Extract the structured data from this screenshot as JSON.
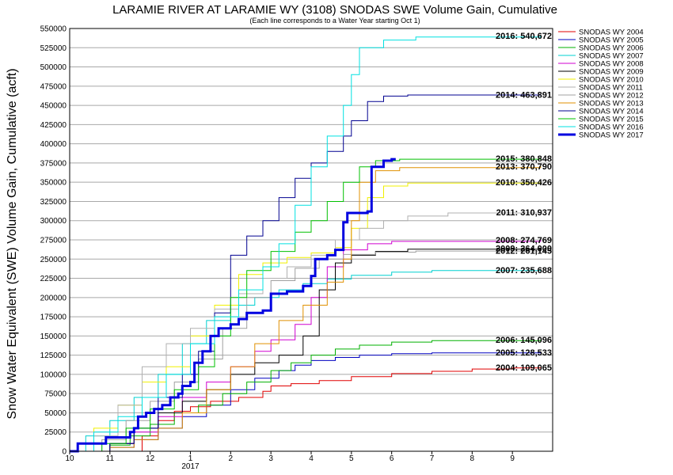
{
  "chart_data": {
    "type": "line",
    "title": "LARAMIE RIVER AT LARAMIE WY (3108) SNODAS SWE Volume Gain, Cumulative",
    "subtitle": "(Each line corresponds to a Water Year starting Oct 1)",
    "ylabel": "Snow Water Equivalent (SWE) Volume Gain, Cumulative (acft)",
    "xlabel": "",
    "ylim": [
      0,
      550000
    ],
    "xlim": [
      10,
      22
    ],
    "x_ticks": [
      {
        "value": 10,
        "label": "10"
      },
      {
        "value": 11,
        "label": "11"
      },
      {
        "value": 12,
        "label": "12"
      },
      {
        "value": 13,
        "label": "1"
      },
      {
        "value": 14,
        "label": "2"
      },
      {
        "value": 15,
        "label": "3"
      },
      {
        "value": 16,
        "label": "4"
      },
      {
        "value": 17,
        "label": "5"
      },
      {
        "value": 18,
        "label": "6"
      },
      {
        "value": 19,
        "label": "7"
      },
      {
        "value": 20,
        "label": "8"
      },
      {
        "value": 21,
        "label": "9"
      }
    ],
    "x_year_label": {
      "value": 13,
      "label": "2017"
    },
    "y_ticks": [
      0,
      25000,
      50000,
      75000,
      100000,
      125000,
      150000,
      175000,
      200000,
      225000,
      250000,
      275000,
      300000,
      325000,
      350000,
      375000,
      400000,
      425000,
      450000,
      475000,
      500000,
      525000,
      550000
    ],
    "grid": "horizontal",
    "legend_position": "right",
    "series": [
      {
        "name": "SNODAS WY 2004",
        "color": "#e00000",
        "width": 1,
        "points": [
          [
            10,
            0
          ],
          [
            11.4,
            0
          ],
          [
            11.8,
            20000
          ],
          [
            12.2,
            40000
          ],
          [
            12.6,
            52000
          ],
          [
            13.0,
            58000
          ],
          [
            13.5,
            65000
          ],
          [
            14.2,
            70000
          ],
          [
            14.8,
            78000
          ],
          [
            15.0,
            85000
          ],
          [
            15.5,
            88000
          ],
          [
            16.2,
            92000
          ],
          [
            17.0,
            97000
          ],
          [
            18.0,
            101000
          ],
          [
            19.0,
            104000
          ],
          [
            20.0,
            107000
          ],
          [
            21.0,
            108500
          ],
          [
            21.7,
            109065
          ]
        ],
        "annotation": "2004: 109,065"
      },
      {
        "name": "SNODAS WY 2005",
        "color": "#0000c0",
        "width": 1,
        "points": [
          [
            10,
            0
          ],
          [
            11.0,
            5000
          ],
          [
            11.6,
            15000
          ],
          [
            12.2,
            30000
          ],
          [
            12.8,
            45000
          ],
          [
            13.4,
            60000
          ],
          [
            14.0,
            80000
          ],
          [
            14.6,
            95000
          ],
          [
            15.2,
            105000
          ],
          [
            15.6,
            112000
          ],
          [
            16.0,
            118000
          ],
          [
            16.6,
            122000
          ],
          [
            17.2,
            125000
          ],
          [
            18.0,
            127000
          ],
          [
            19.0,
            128000
          ],
          [
            21.7,
            128533
          ]
        ],
        "annotation": "2005: 128,533"
      },
      {
        "name": "SNODAS WY 2006",
        "color": "#00b000",
        "width": 1,
        "points": [
          [
            10,
            0
          ],
          [
            11.0,
            8000
          ],
          [
            11.5,
            20000
          ],
          [
            12.0,
            35000
          ],
          [
            12.6,
            50000
          ],
          [
            13.2,
            60000
          ],
          [
            13.8,
            75000
          ],
          [
            14.4,
            90000
          ],
          [
            15.0,
            105000
          ],
          [
            15.5,
            115000
          ],
          [
            16.0,
            125000
          ],
          [
            16.6,
            133000
          ],
          [
            17.2,
            138000
          ],
          [
            18.0,
            142000
          ],
          [
            19.0,
            144000
          ],
          [
            21.7,
            145096
          ]
        ],
        "annotation": "2006: 145,096"
      },
      {
        "name": "SNODAS WY 2007",
        "color": "#00d0d0",
        "width": 1,
        "points": [
          [
            10,
            0
          ],
          [
            10.4,
            20000
          ],
          [
            11.0,
            40000
          ],
          [
            11.6,
            70000
          ],
          [
            12.2,
            100000
          ],
          [
            12.8,
            140000
          ],
          [
            13.4,
            170000
          ],
          [
            14.0,
            190000
          ],
          [
            14.6,
            200000
          ],
          [
            15.2,
            210000
          ],
          [
            15.8,
            218000
          ],
          [
            16.4,
            224000
          ],
          [
            17.0,
            229000
          ],
          [
            18.0,
            233000
          ],
          [
            19.0,
            235000
          ],
          [
            21.7,
            235688
          ]
        ],
        "annotation": "2007: 235,688"
      },
      {
        "name": "SNODAS WY 2008",
        "color": "#d000d0",
        "width": 1,
        "points": [
          [
            10,
            0
          ],
          [
            11.0,
            10000
          ],
          [
            11.6,
            25000
          ],
          [
            12.2,
            45000
          ],
          [
            12.8,
            70000
          ],
          [
            13.4,
            90000
          ],
          [
            14.0,
            110000
          ],
          [
            14.6,
            130000
          ],
          [
            15.0,
            145000
          ],
          [
            15.6,
            165000
          ],
          [
            16.0,
            200000
          ],
          [
            16.4,
            240000
          ],
          [
            16.8,
            262000
          ],
          [
            17.4,
            270000
          ],
          [
            18.0,
            273000
          ],
          [
            21.7,
            274769
          ]
        ],
        "annotation": "2008: 274,769"
      },
      {
        "name": "SNODAS WY 2009",
        "color": "#000000",
        "width": 1,
        "points": [
          [
            10,
            0
          ],
          [
            11.0,
            10000
          ],
          [
            11.6,
            30000
          ],
          [
            12.2,
            50000
          ],
          [
            12.8,
            65000
          ],
          [
            13.4,
            80000
          ],
          [
            14.0,
            100000
          ],
          [
            14.6,
            115000
          ],
          [
            15.2,
            125000
          ],
          [
            15.8,
            150000
          ],
          [
            16.2,
            210000
          ],
          [
            16.6,
            245000
          ],
          [
            17.0,
            255000
          ],
          [
            17.6,
            260000
          ],
          [
            18.4,
            263000
          ],
          [
            21.7,
            264000
          ]
        ],
        "annotation": "2009: 264,000"
      },
      {
        "name": "SNODAS WY 2010",
        "color": "#f0f000",
        "width": 1,
        "points": [
          [
            10,
            0
          ],
          [
            10.6,
            30000
          ],
          [
            11.2,
            60000
          ],
          [
            11.8,
            90000
          ],
          [
            12.4,
            110000
          ],
          [
            13.0,
            150000
          ],
          [
            13.6,
            190000
          ],
          [
            14.2,
            230000
          ],
          [
            14.8,
            245000
          ],
          [
            15.4,
            252000
          ],
          [
            16.0,
            258000
          ],
          [
            16.6,
            265000
          ],
          [
            17.0,
            290000
          ],
          [
            17.4,
            330000
          ],
          [
            17.8,
            345000
          ],
          [
            18.4,
            349000
          ],
          [
            21.7,
            350426
          ]
        ],
        "annotation": "2010: 350,426"
      },
      {
        "name": "SNODAS WY 2011",
        "color": "#b0b0b0",
        "width": 1,
        "points": [
          [
            10,
            0
          ],
          [
            10.6,
            20000
          ],
          [
            11.2,
            60000
          ],
          [
            11.8,
            110000
          ],
          [
            12.4,
            140000
          ],
          [
            13.0,
            160000
          ],
          [
            13.6,
            185000
          ],
          [
            14.2,
            205000
          ],
          [
            14.8,
            225000
          ],
          [
            15.4,
            240000
          ],
          [
            16.0,
            255000
          ],
          [
            16.6,
            275000
          ],
          [
            17.2,
            290000
          ],
          [
            17.8,
            300000
          ],
          [
            18.4,
            306000
          ],
          [
            19.4,
            310000
          ],
          [
            21.7,
            310937
          ]
        ],
        "annotation": "2011: 310,937"
      },
      {
        "name": "SNODAS WY 2012",
        "color": "#a0a0a0",
        "width": 1,
        "points": [
          [
            10,
            0
          ],
          [
            10.8,
            15000
          ],
          [
            11.4,
            40000
          ],
          [
            12.0,
            65000
          ],
          [
            12.6,
            90000
          ],
          [
            13.2,
            120000
          ],
          [
            13.8,
            160000
          ],
          [
            14.4,
            200000
          ],
          [
            15.0,
            222000
          ],
          [
            15.6,
            238000
          ],
          [
            16.2,
            250000
          ],
          [
            16.8,
            256000
          ],
          [
            17.6,
            259000
          ],
          [
            18.6,
            260500
          ],
          [
            21.7,
            261145
          ]
        ],
        "annotation": "2012: 261,145"
      },
      {
        "name": "SNODAS WY 2013",
        "color": "#e09000",
        "width": 1,
        "points": [
          [
            10,
            0
          ],
          [
            11.0,
            5000
          ],
          [
            11.6,
            15000
          ],
          [
            12.2,
            30000
          ],
          [
            12.8,
            50000
          ],
          [
            13.4,
            80000
          ],
          [
            14.0,
            110000
          ],
          [
            14.6,
            140000
          ],
          [
            15.2,
            170000
          ],
          [
            15.8,
            190000
          ],
          [
            16.4,
            220000
          ],
          [
            16.8,
            250000
          ],
          [
            17.0,
            300000
          ],
          [
            17.2,
            350000
          ],
          [
            17.6,
            365000
          ],
          [
            18.2,
            369000
          ],
          [
            21.7,
            370790
          ]
        ],
        "annotation": "2013: 370,790"
      },
      {
        "name": "SNODAS WY 2014",
        "color": "#000090",
        "width": 1,
        "points": [
          [
            10,
            0
          ],
          [
            11.0,
            10000
          ],
          [
            11.6,
            30000
          ],
          [
            12.2,
            70000
          ],
          [
            12.8,
            100000
          ],
          [
            13.2,
            130000
          ],
          [
            13.6,
            180000
          ],
          [
            14.0,
            255000
          ],
          [
            14.4,
            280000
          ],
          [
            14.8,
            300000
          ],
          [
            15.2,
            330000
          ],
          [
            15.6,
            355000
          ],
          [
            16.0,
            375000
          ],
          [
            16.4,
            390000
          ],
          [
            16.8,
            410000
          ],
          [
            17.0,
            430000
          ],
          [
            17.4,
            455000
          ],
          [
            17.8,
            462000
          ],
          [
            18.4,
            463500
          ],
          [
            21.7,
            463891
          ]
        ],
        "annotation": "2014: 463,891"
      },
      {
        "name": "SNODAS WY 2015",
        "color": "#00c000",
        "width": 1,
        "points": [
          [
            10,
            0
          ],
          [
            10.8,
            10000
          ],
          [
            11.4,
            30000
          ],
          [
            12.0,
            55000
          ],
          [
            12.6,
            80000
          ],
          [
            13.2,
            110000
          ],
          [
            13.6,
            150000
          ],
          [
            14.0,
            200000
          ],
          [
            14.4,
            235000
          ],
          [
            15.0,
            260000
          ],
          [
            15.6,
            285000
          ],
          [
            16.0,
            300000
          ],
          [
            16.4,
            325000
          ],
          [
            16.8,
            350000
          ],
          [
            17.2,
            370000
          ],
          [
            17.6,
            378000
          ],
          [
            18.2,
            380000
          ],
          [
            21.7,
            380848
          ]
        ],
        "annotation": "2015: 380,848"
      },
      {
        "name": "SNODAS WY 2016",
        "color": "#00e0e0",
        "width": 1,
        "points": [
          [
            10,
            0
          ],
          [
            10.6,
            25000
          ],
          [
            11.2,
            45000
          ],
          [
            11.8,
            70000
          ],
          [
            12.4,
            100000
          ],
          [
            13.0,
            140000
          ],
          [
            13.6,
            175000
          ],
          [
            14.2,
            210000
          ],
          [
            14.8,
            240000
          ],
          [
            15.2,
            270000
          ],
          [
            15.6,
            320000
          ],
          [
            16.0,
            370000
          ],
          [
            16.4,
            410000
          ],
          [
            16.8,
            450000
          ],
          [
            17.0,
            490000
          ],
          [
            17.2,
            525000
          ],
          [
            17.8,
            535000
          ],
          [
            18.6,
            539000
          ],
          [
            21.7,
            540672
          ]
        ],
        "annotation": "2016: 540,672"
      },
      {
        "name": "SNODAS WY 2017",
        "color": "#0000e0",
        "width": 3,
        "points": [
          [
            10,
            0
          ],
          [
            10.2,
            5000
          ],
          [
            10.2,
            10000
          ],
          [
            10.8,
            10000
          ],
          [
            10.9,
            18000
          ],
          [
            11.4,
            18000
          ],
          [
            11.5,
            25000
          ],
          [
            11.6,
            30000
          ],
          [
            11.7,
            45000
          ],
          [
            11.9,
            50000
          ],
          [
            12.1,
            55000
          ],
          [
            12.3,
            60000
          ],
          [
            12.5,
            70000
          ],
          [
            12.7,
            75000
          ],
          [
            12.8,
            85000
          ],
          [
            13.0,
            90000
          ],
          [
            13.1,
            115000
          ],
          [
            13.3,
            130000
          ],
          [
            13.5,
            150000
          ],
          [
            13.7,
            160000
          ],
          [
            14.0,
            165000
          ],
          [
            14.2,
            172000
          ],
          [
            14.4,
            180000
          ],
          [
            14.8,
            183000
          ],
          [
            15.0,
            205000
          ],
          [
            15.4,
            208000
          ],
          [
            15.8,
            215000
          ],
          [
            16.0,
            228000
          ],
          [
            16.1,
            250000
          ],
          [
            16.4,
            255000
          ],
          [
            16.6,
            262000
          ],
          [
            16.8,
            298000
          ],
          [
            16.9,
            310000
          ],
          [
            17.4,
            312000
          ],
          [
            17.5,
            370000
          ],
          [
            17.8,
            378000
          ],
          [
            18.0,
            380000
          ],
          [
            18.1,
            380000
          ]
        ],
        "annotation": ""
      }
    ],
    "annotations_extra": [
      {
        "label": "2015: 380,848"
      },
      {
        "label": "2013: 370,790"
      }
    ]
  }
}
